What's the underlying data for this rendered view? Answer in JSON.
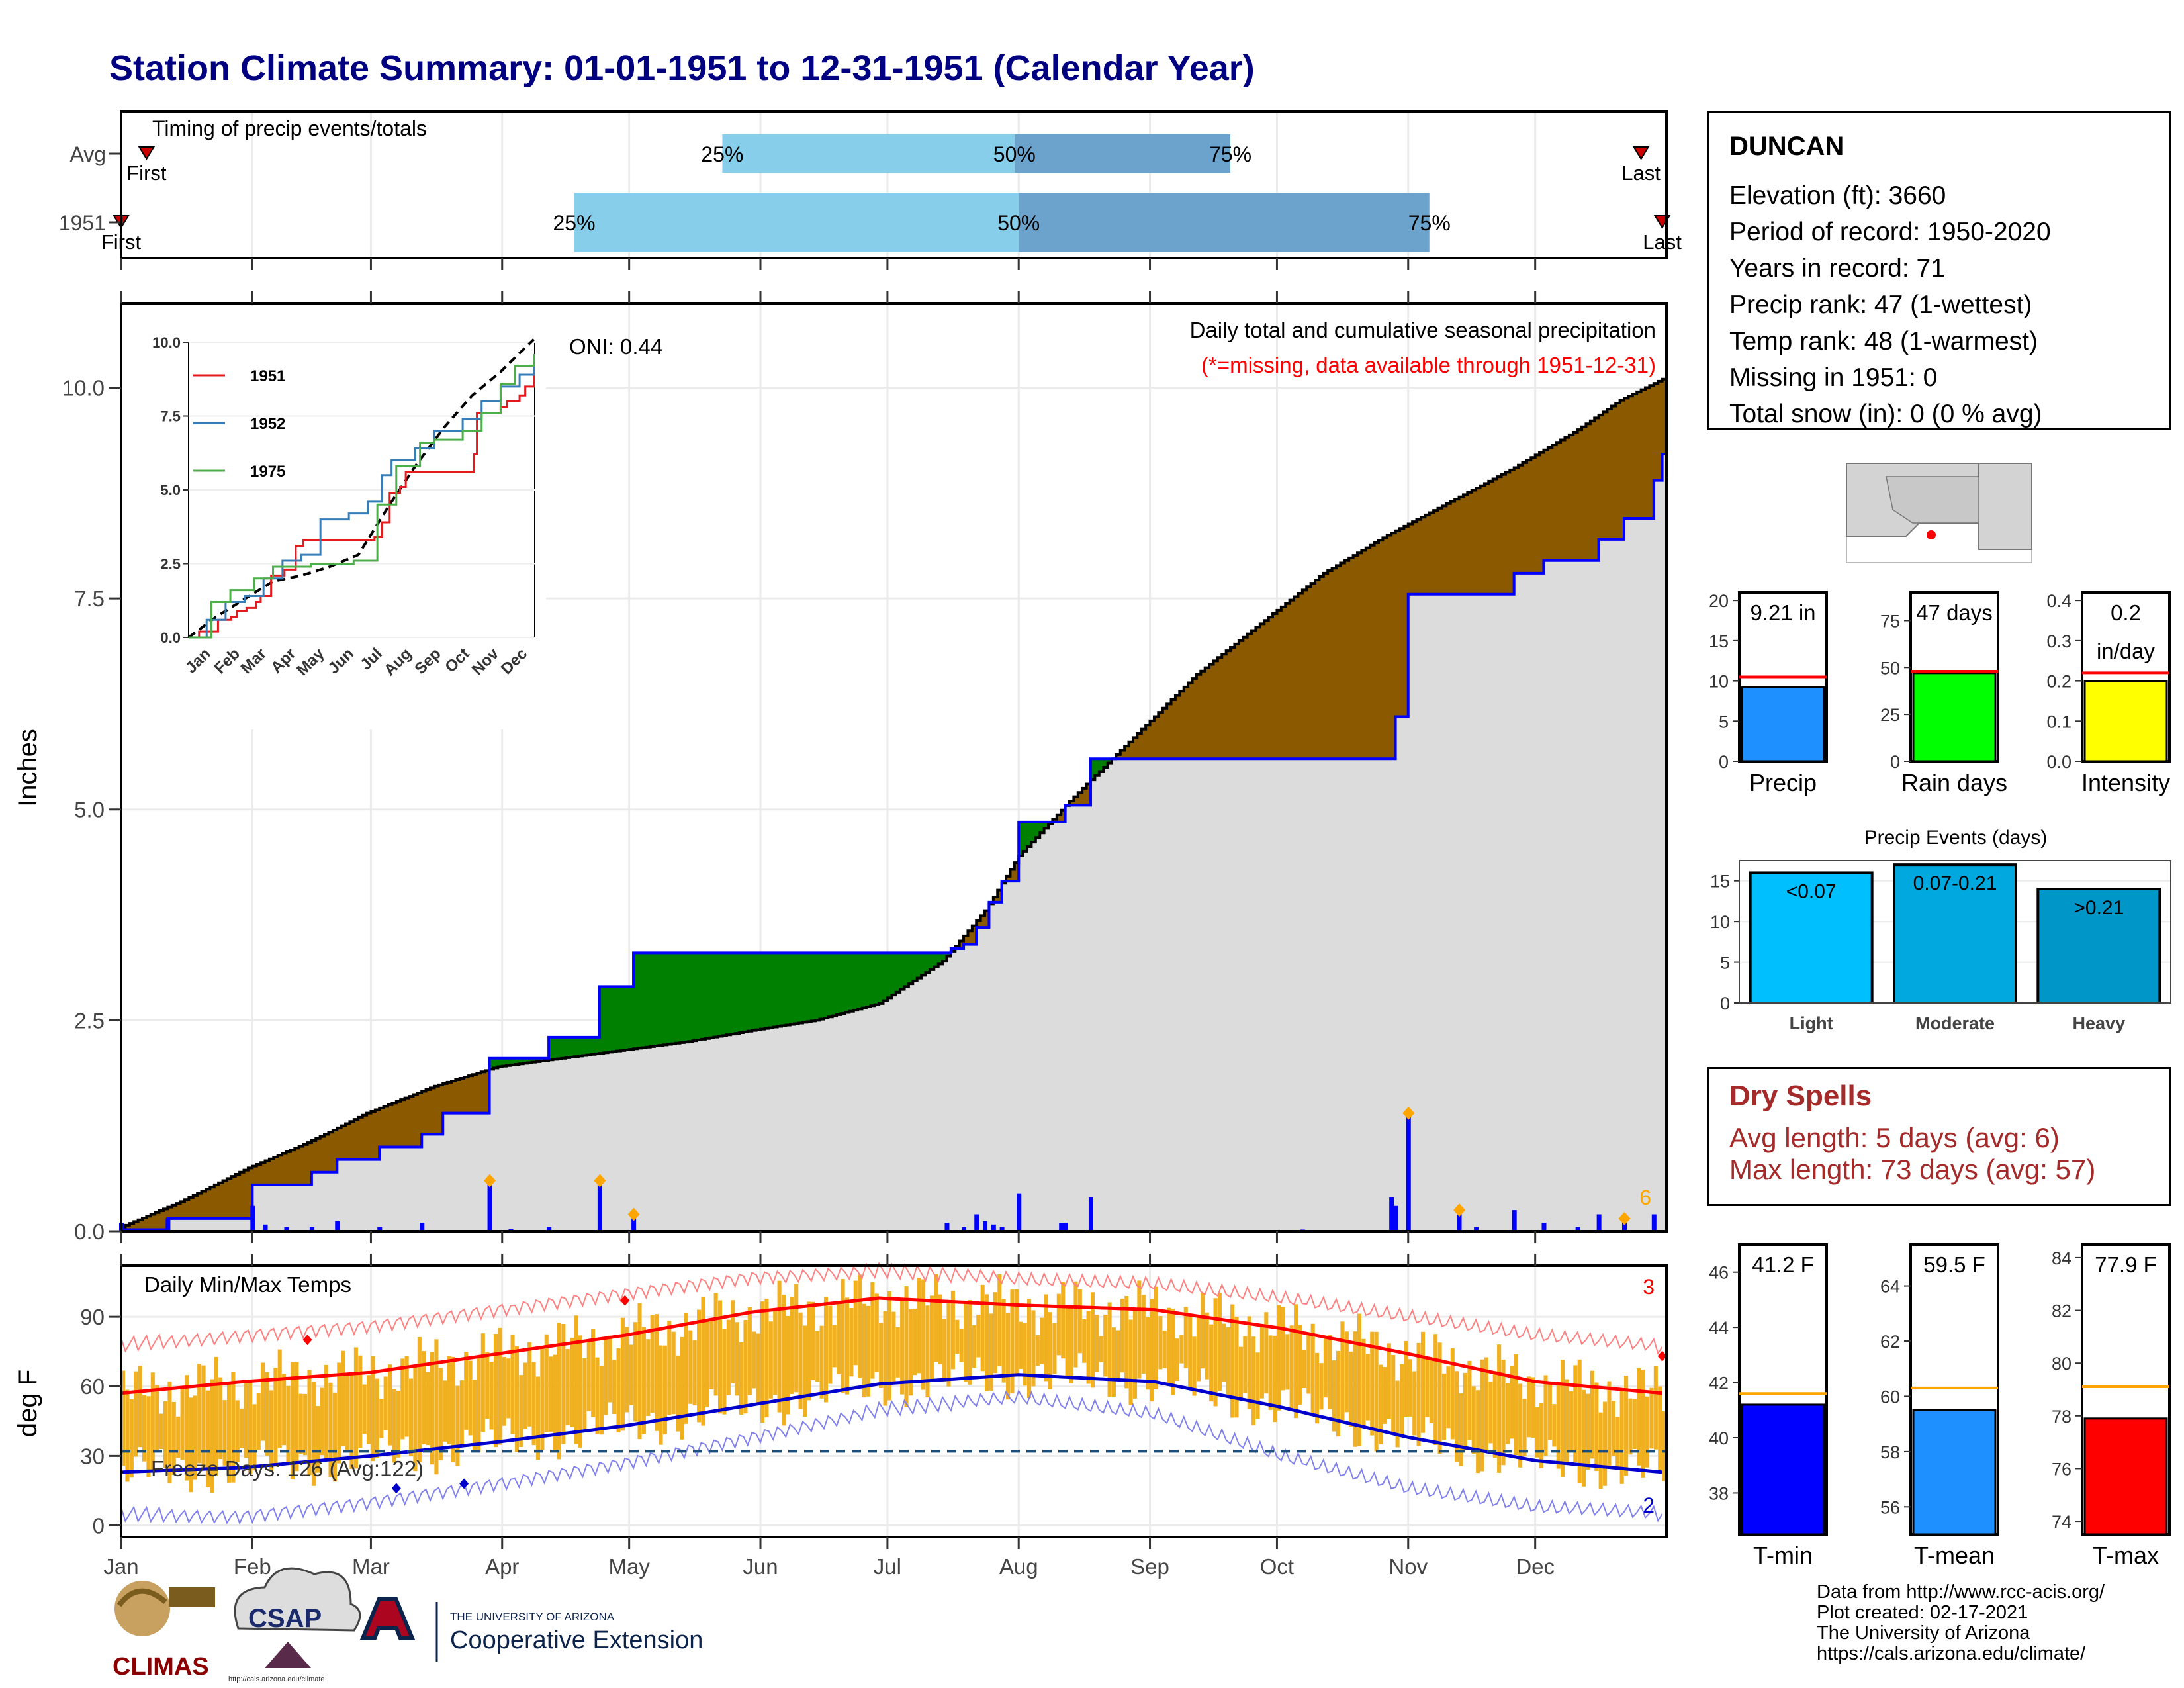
{
  "title": "Station Climate Summary: 01-01-1951 to 12-31-1951 (Calendar Year)",
  "station": {
    "name": "DUNCAN",
    "elevation": "Elevation (ft): 3660",
    "period": "Period of record: 1950-2020",
    "years": "Years in record: 71",
    "precip_rank": "Precip rank: 47 (1-wettest)",
    "temp_rank": "Temp rank: 48 (1-warmest)",
    "missing": "Missing in 1951: 0",
    "snow": "Total snow (in): 0 (0 % avg)"
  },
  "dry_spells": {
    "title": "Dry Spells",
    "avg": "Avg length: 5 days (avg: 6)",
    "max": "Max length: 73 days (avg: 57)"
  },
  "credits": [
    "Data from http://www.rcc-acis.org/",
    "Plot created: 02-17-2021",
    "The University of Arizona",
    "https://cals.arizona.edu/climate/"
  ],
  "logos": {
    "climas": "CLIMAS",
    "csap": "CSAP",
    "uofa_small": "THE UNIVERSITY OF ARIZONA",
    "coop_ext": "Cooperative Extension",
    "csap_url": "http://cals.arizona.edu/climate"
  },
  "colors": {
    "title": "#000080",
    "deficit": "#8B5A00",
    "surplus": "#008000",
    "cumulative_avg": "#dcdcdc",
    "precip_line": "#0000ff",
    "q_light": "#87ceeb",
    "q_dark": "#6ba3cc",
    "temp_bar": "#f0b020",
    "tmax_line": "#ff0000",
    "tmin_line": "#0000cc",
    "dry_text": "#a52a2a"
  },
  "chart_data": [
    {
      "id": "timing",
      "type": "bar",
      "title": "Timing of precip events/totals",
      "rows": [
        {
          "label": "Avg",
          "first": "01-07",
          "q25": "05-23",
          "q50": "07-31",
          "q75": "09-20",
          "last": "12-26",
          "first_label": "First",
          "last_label": "Last"
        },
        {
          "label": "1951",
          "first": "01-01",
          "q25": "04-18",
          "q50": "08-01",
          "q75": "11-06",
          "last": "12-31",
          "first_label": "First",
          "last_label": "Last"
        }
      ],
      "pct_labels": [
        "25%",
        "50%",
        "75%"
      ]
    },
    {
      "id": "precip",
      "type": "area",
      "title": "Daily total and cumulative seasonal precipitation",
      "subtitle": "(*=missing, data available through 1951-12-31)",
      "oni": "ONI: 0.44",
      "ylabel": "Inches",
      "ylim": [
        0,
        11
      ],
      "yticks": [
        "0.0",
        "2.5",
        "5.0",
        "7.5",
        "10.0"
      ],
      "avg_cumulative": [
        [
          1,
          0.05
        ],
        [
          15,
          0.35
        ],
        [
          31,
          0.75
        ],
        [
          45,
          1.05
        ],
        [
          59,
          1.4
        ],
        [
          75,
          1.72
        ],
        [
          90,
          1.95
        ],
        [
          105,
          2.05
        ],
        [
          120,
          2.15
        ],
        [
          135,
          2.25
        ],
        [
          150,
          2.38
        ],
        [
          165,
          2.5
        ],
        [
          180,
          2.7
        ],
        [
          195,
          3.2
        ],
        [
          205,
          3.8
        ],
        [
          213,
          4.45
        ],
        [
          225,
          5.1
        ],
        [
          240,
          5.85
        ],
        [
          255,
          6.6
        ],
        [
          270,
          7.2
        ],
        [
          285,
          7.8
        ],
        [
          300,
          8.25
        ],
        [
          315,
          8.65
        ],
        [
          330,
          9.05
        ],
        [
          345,
          9.5
        ],
        [
          355,
          9.85
        ],
        [
          365,
          10.1
        ]
      ],
      "cumulative_1951": [
        [
          1,
          0.02
        ],
        [
          12,
          0.02
        ],
        [
          12,
          0.15
        ],
        [
          32,
          0.15
        ],
        [
          32,
          0.55
        ],
        [
          46,
          0.55
        ],
        [
          46,
          0.7
        ],
        [
          52,
          0.7
        ],
        [
          52,
          0.85
        ],
        [
          62,
          0.85
        ],
        [
          62,
          1.0
        ],
        [
          72,
          1.0
        ],
        [
          72,
          1.15
        ],
        [
          77,
          1.15
        ],
        [
          77,
          1.4
        ],
        [
          88,
          1.4
        ],
        [
          88,
          2.05
        ],
        [
          102,
          2.05
        ],
        [
          102,
          2.3
        ],
        [
          114,
          2.3
        ],
        [
          114,
          2.9
        ],
        [
          122,
          2.9
        ],
        [
          122,
          3.3
        ],
        [
          197,
          3.3
        ],
        [
          197,
          3.35
        ],
        [
          200,
          3.4
        ],
        [
          203,
          3.6
        ],
        [
          206,
          3.9
        ],
        [
          209,
          4.15
        ],
        [
          213,
          4.3
        ],
        [
          213,
          4.85
        ],
        [
          224,
          4.85
        ],
        [
          224,
          5.05
        ],
        [
          230,
          5.05
        ],
        [
          230,
          5.6
        ],
        [
          280,
          5.6
        ],
        [
          280,
          5.6
        ],
        [
          302,
          5.6
        ],
        [
          302,
          6.1
        ],
        [
          305,
          6.1
        ],
        [
          305,
          7.55
        ],
        [
          330,
          7.55
        ],
        [
          330,
          7.8
        ],
        [
          337,
          7.8
        ],
        [
          337,
          7.95
        ],
        [
          350,
          7.95
        ],
        [
          350,
          8.2
        ],
        [
          356,
          8.2
        ],
        [
          356,
          8.45
        ],
        [
          363,
          8.45
        ],
        [
          363,
          8.9
        ],
        [
          365,
          8.9
        ],
        [
          365,
          9.21
        ]
      ],
      "daily": [
        [
          1,
          0.1
        ],
        [
          12,
          0.15
        ],
        [
          32,
          0.3
        ],
        [
          35,
          0.08
        ],
        [
          40,
          0.05
        ],
        [
          46,
          0.05
        ],
        [
          52,
          0.12
        ],
        [
          62,
          0.05
        ],
        [
          72,
          0.1
        ],
        [
          88,
          0.6
        ],
        [
          93,
          0.03
        ],
        [
          102,
          0.05
        ],
        [
          114,
          0.6
        ],
        [
          122,
          0.2
        ],
        [
          196,
          0.1
        ],
        [
          200,
          0.05
        ],
        [
          203,
          0.2
        ],
        [
          205,
          0.12
        ],
        [
          207,
          0.08
        ],
        [
          209,
          0.05
        ],
        [
          213,
          0.45
        ],
        [
          223,
          0.1
        ],
        [
          224,
          0.1
        ],
        [
          230,
          0.4
        ],
        [
          280,
          0.02
        ],
        [
          301,
          0.4
        ],
        [
          302,
          0.3
        ],
        [
          305,
          1.4
        ],
        [
          317,
          0.25
        ],
        [
          321,
          0.05
        ],
        [
          330,
          0.25
        ],
        [
          337,
          0.1
        ],
        [
          345,
          0.05
        ],
        [
          350,
          0.2
        ],
        [
          356,
          0.15
        ],
        [
          363,
          0.2
        ]
      ],
      "daily_markers": [
        [
          88,
          0.6
        ],
        [
          114,
          0.6
        ],
        [
          122,
          0.2
        ],
        [
          305,
          1.4
        ],
        [
          317,
          0.25
        ],
        [
          356,
          0.15
        ]
      ],
      "corner_count": "6"
    },
    {
      "id": "inset",
      "type": "line",
      "ylim": [
        0,
        10
      ],
      "yticks": [
        "0.0",
        "2.5",
        "5.0",
        "7.5",
        "10.0"
      ],
      "xticks": [
        "Jan",
        "Feb",
        "Mar",
        "Apr",
        "May",
        "Jun",
        "Jul",
        "Aug",
        "Sep",
        "Oct",
        "Nov",
        "Dec"
      ],
      "series": [
        {
          "name": "1951",
          "color": "#e41a1c",
          "values": [
            [
              1,
              0
            ],
            [
              12,
              0.2
            ],
            [
              32,
              0.6
            ],
            [
              46,
              0.7
            ],
            [
              52,
              0.9
            ],
            [
              62,
              1.0
            ],
            [
              72,
              1.2
            ],
            [
              77,
              1.4
            ],
            [
              88,
              2.1
            ],
            [
              102,
              2.3
            ],
            [
              114,
              3.1
            ],
            [
              122,
              3.3
            ],
            [
              197,
              3.4
            ],
            [
              205,
              3.9
            ],
            [
              213,
              4.9
            ],
            [
              224,
              5.1
            ],
            [
              230,
              5.6
            ],
            [
              302,
              6.2
            ],
            [
              305,
              7.6
            ],
            [
              330,
              7.8
            ],
            [
              337,
              8.0
            ],
            [
              350,
              8.2
            ],
            [
              356,
              8.5
            ],
            [
              365,
              9.2
            ]
          ]
        },
        {
          "name": "1952",
          "color": "#377eb8",
          "values": [
            [
              1,
              0
            ],
            [
              20,
              0.6
            ],
            [
              40,
              1.2
            ],
            [
              60,
              1.4
            ],
            [
              80,
              2.0
            ],
            [
              100,
              2.6
            ],
            [
              120,
              2.8
            ],
            [
              140,
              4.0
            ],
            [
              170,
              4.2
            ],
            [
              190,
              4.6
            ],
            [
              205,
              5.5
            ],
            [
              215,
              6.0
            ],
            [
              240,
              6.4
            ],
            [
              260,
              7.0
            ],
            [
              290,
              7.4
            ],
            [
              310,
              8.0
            ],
            [
              330,
              8.5
            ],
            [
              350,
              8.9
            ],
            [
              365,
              9.4
            ]
          ]
        },
        {
          "name": "1975",
          "color": "#4daf4a",
          "values": [
            [
              1,
              0
            ],
            [
              25,
              1.2
            ],
            [
              45,
              1.6
            ],
            [
              70,
              2.0
            ],
            [
              90,
              2.4
            ],
            [
              130,
              2.5
            ],
            [
              175,
              2.6
            ],
            [
              200,
              4.5
            ],
            [
              220,
              5.8
            ],
            [
              245,
              6.6
            ],
            [
              260,
              6.7
            ],
            [
              290,
              7.0
            ],
            [
              310,
              7.6
            ],
            [
              330,
              8.6
            ],
            [
              345,
              9.2
            ],
            [
              365,
              9.6
            ]
          ]
        }
      ],
      "avg_values": [
        [
          1,
          0
        ],
        [
          30,
          0.7
        ],
        [
          60,
          1.3
        ],
        [
          90,
          1.9
        ],
        [
          120,
          2.1
        ],
        [
          150,
          2.4
        ],
        [
          180,
          2.8
        ],
        [
          213,
          4.5
        ],
        [
          240,
          5.8
        ],
        [
          270,
          7.1
        ],
        [
          300,
          8.2
        ],
        [
          330,
          9.0
        ],
        [
          365,
          10.1
        ]
      ]
    },
    {
      "id": "temps",
      "type": "bar",
      "title": "Daily Min/Max Temps",
      "ylabel": "deg F",
      "ylim": [
        -5,
        112
      ],
      "yticks": [
        "0",
        "30",
        "60",
        "90"
      ],
      "freeze_label": "Freeze Days: 126 (Avg:122)",
      "freeze_line": 32,
      "xticks": [
        "Jan",
        "Feb",
        "Mar",
        "Apr",
        "May",
        "Jun",
        "Jul",
        "Aug",
        "Sep",
        "Oct",
        "Nov",
        "Dec"
      ],
      "record_high_count": "3",
      "record_low_count": "2",
      "normal_max": [
        [
          1,
          57
        ],
        [
          30,
          62
        ],
        [
          60,
          66
        ],
        [
          90,
          74
        ],
        [
          120,
          82
        ],
        [
          150,
          92
        ],
        [
          180,
          98
        ],
        [
          213,
          95
        ],
        [
          245,
          93
        ],
        [
          275,
          85
        ],
        [
          305,
          74
        ],
        [
          335,
          62
        ],
        [
          365,
          57
        ]
      ],
      "normal_min": [
        [
          1,
          23
        ],
        [
          30,
          25
        ],
        [
          60,
          30
        ],
        [
          90,
          36
        ],
        [
          120,
          43
        ],
        [
          150,
          52
        ],
        [
          180,
          61
        ],
        [
          213,
          65
        ],
        [
          245,
          62
        ],
        [
          275,
          51
        ],
        [
          305,
          38
        ],
        [
          335,
          28
        ],
        [
          365,
          23
        ]
      ],
      "record_max": [
        [
          1,
          78
        ],
        [
          30,
          82
        ],
        [
          60,
          86
        ],
        [
          90,
          93
        ],
        [
          120,
          100
        ],
        [
          150,
          107
        ],
        [
          180,
          110
        ],
        [
          213,
          106
        ],
        [
          245,
          104
        ],
        [
          275,
          98
        ],
        [
          305,
          90
        ],
        [
          335,
          82
        ],
        [
          365,
          77
        ]
      ],
      "record_min": [
        [
          1,
          5
        ],
        [
          30,
          4
        ],
        [
          60,
          10
        ],
        [
          90,
          18
        ],
        [
          120,
          27
        ],
        [
          150,
          38
        ],
        [
          180,
          50
        ],
        [
          213,
          55
        ],
        [
          245,
          48
        ],
        [
          275,
          30
        ],
        [
          305,
          16
        ],
        [
          335,
          8
        ],
        [
          365,
          5
        ]
      ]
    },
    {
      "id": "summary_bars",
      "type": "bar",
      "panels": [
        {
          "name": "Precip",
          "value": 9.21,
          "avg": 10.5,
          "ylim": [
            0,
            21
          ],
          "yticks": [
            "0",
            "5",
            "10",
            "15",
            "20"
          ],
          "label": "9.21 in",
          "color": "#1e90ff"
        },
        {
          "name": "Rain days",
          "value": 47,
          "avg": 48,
          "ylim": [
            0,
            90
          ],
          "yticks": [
            "0",
            "25",
            "50",
            "75"
          ],
          "label": "47 days",
          "color": "#00ff00"
        },
        {
          "name": "Intensity",
          "value": 0.2,
          "avg": 0.22,
          "ylim": [
            0,
            0.42
          ],
          "yticks": [
            "0.0",
            "0.1",
            "0.2",
            "0.3",
            "0.4"
          ],
          "label": "0.2",
          "label2": "in/day",
          "color": "#ffff00"
        }
      ]
    },
    {
      "id": "events",
      "type": "bar",
      "title": "Precip Events (days)",
      "categories": [
        "Light",
        "Moderate",
        "Heavy"
      ],
      "values": [
        16,
        17,
        14
      ],
      "labels": [
        "<0.07",
        "0.07-0.21",
        ">0.21"
      ],
      "colors": [
        "#00bfff",
        "#00a8e0",
        "#0096c8"
      ],
      "ylim": [
        0,
        17.5
      ],
      "yticks": [
        "0",
        "5",
        "10",
        "15"
      ]
    },
    {
      "id": "temp_bars",
      "type": "bar",
      "panels": [
        {
          "name": "T-min",
          "value": 41.2,
          "avg": 41.6,
          "ylim": [
            36.5,
            47
          ],
          "yticks": [
            "38",
            "40",
            "42",
            "44",
            "46"
          ],
          "label": "41.2 F",
          "color": "#0000ff"
        },
        {
          "name": "T-mean",
          "value": 59.5,
          "avg": 60.3,
          "ylim": [
            55,
            65.5
          ],
          "yticks": [
            "56",
            "58",
            "60",
            "62",
            "64"
          ],
          "label": "59.5 F",
          "color": "#1e90ff"
        },
        {
          "name": "T-max",
          "value": 77.9,
          "avg": 79.1,
          "ylim": [
            73.5,
            84.5
          ],
          "yticks": [
            "74",
            "76",
            "78",
            "80",
            "82",
            "84"
          ],
          "label": "77.9 F",
          "color": "#ff0000"
        }
      ]
    }
  ]
}
